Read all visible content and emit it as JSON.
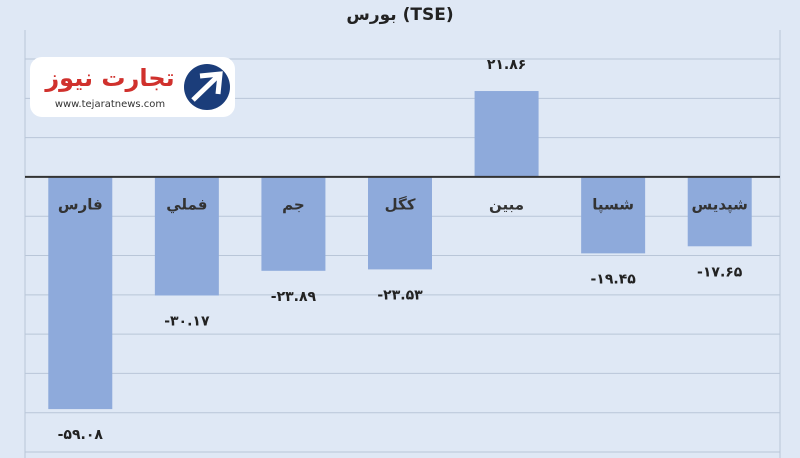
{
  "chart_data": {
    "type": "bar",
    "title": "بورس (TSE)",
    "categories": [
      "فارس",
      "فملي",
      "جم",
      "كگل",
      "مبين",
      "شسپا",
      "شپديس"
    ],
    "values": [
      -59.08,
      -30.17,
      -23.89,
      -23.53,
      21.86,
      -19.45,
      -17.65
    ],
    "value_labels": [
      "-۵۹.۰۸",
      "-۳۰.۱۷",
      "-۲۳.۸۹",
      "-۲۳.۵۳",
      "۲۱.۸۶",
      "-۱۹.۴۵",
      "-۱۷.۶۵"
    ],
    "color": "#8eaadb",
    "ylim": [
      -70,
      35
    ],
    "yticks": [
      -70,
      -60,
      -50,
      -40,
      -30,
      -20,
      -10,
      0,
      10,
      20,
      30
    ],
    "grid": true
  },
  "logo": {
    "name": "تجارت نیوز",
    "url": "www.tejaratnews.com"
  }
}
